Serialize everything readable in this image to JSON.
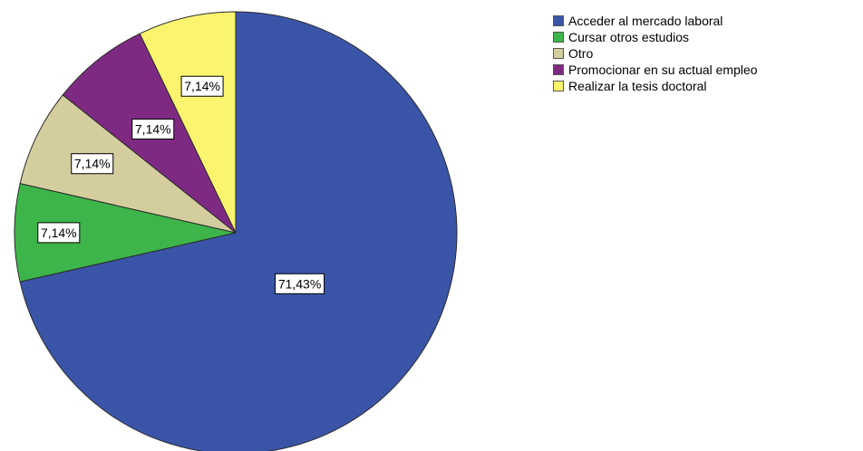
{
  "chart_data": {
    "type": "pie",
    "slices": [
      {
        "label": "Acceder al mercado laboral",
        "value": 71.43,
        "display": "71,43%",
        "color": "#3a55a8"
      },
      {
        "label": "Cursar otros estudios",
        "value": 7.14,
        "display": "7,14%",
        "color": "#3db54a"
      },
      {
        "label": "Otro",
        "value": 7.14,
        "display": "7,14%",
        "color": "#d4ce9e"
      },
      {
        "label": "Promocionar en su actual empleo",
        "value": 7.14,
        "display": "7,14%",
        "color": "#7e2a83"
      },
      {
        "label": "Realizar la tesis doctoral",
        "value": 7.14,
        "display": "7,14%",
        "color": "#fbf46e"
      }
    ],
    "legend_position": "top-right"
  }
}
